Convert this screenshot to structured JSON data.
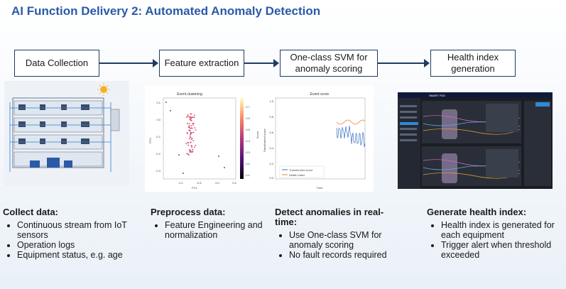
{
  "title": "AI Function Delivery 2: Automated Anomaly Detection",
  "steps": [
    {
      "label": "Data Collection"
    },
    {
      "label": "Feature extraction"
    },
    {
      "label": "One-class SVM for anomaly scoring"
    },
    {
      "label": "Health index generation"
    }
  ],
  "columns": [
    {
      "heading": "Collect data:",
      "bullets": [
        "Continuous stream from IoT sensors",
        "Operation logs",
        "Equipment status, e.g. age"
      ]
    },
    {
      "heading": "Preprocess data:",
      "bullets": [
        "Feature Engineering and normalization"
      ]
    },
    {
      "heading": "Detect anomalies in real-time:",
      "bullets": [
        "Use One-class SVM for anomaly scoring",
        "No fault records required"
      ]
    },
    {
      "heading": "Generate health index:",
      "bullets": [
        "Health index is generated for each equipment",
        "Trigger alert when threshold exceeded"
      ]
    }
  ],
  "scatter": {
    "title": "Event clustering",
    "xlabel": "PC1",
    "ylabel": "PC2",
    "colorbar_label": "Score",
    "xticks": [
      "-1.0",
      "-0.5",
      "0.0",
      "0.5"
    ],
    "yticks": [
      "0.1",
      "0.0",
      "-0.1",
      "-0.2",
      "-0.3"
    ],
    "cticks": [
      "-0.7",
      "-0.6",
      "-0.5",
      "-0.4",
      "-0.3",
      "-0.2",
      "-0.1"
    ]
  },
  "score_chart": {
    "title": "Event score",
    "xlabel": "Time",
    "ylabel": "Transformed score",
    "yticks": [
      "1.0",
      "0.8",
      "0.6",
      "0.4",
      "0.2",
      "0.0"
    ],
    "legend": [
      "Transformed score",
      "Health index"
    ]
  },
  "dashboard": {
    "brand": "SMART FDD"
  },
  "colors": {
    "title": "#2a5aa8",
    "box_border": "#1f3b63",
    "score_line": "#3a6fc4",
    "health_line": "#e6843a"
  }
}
